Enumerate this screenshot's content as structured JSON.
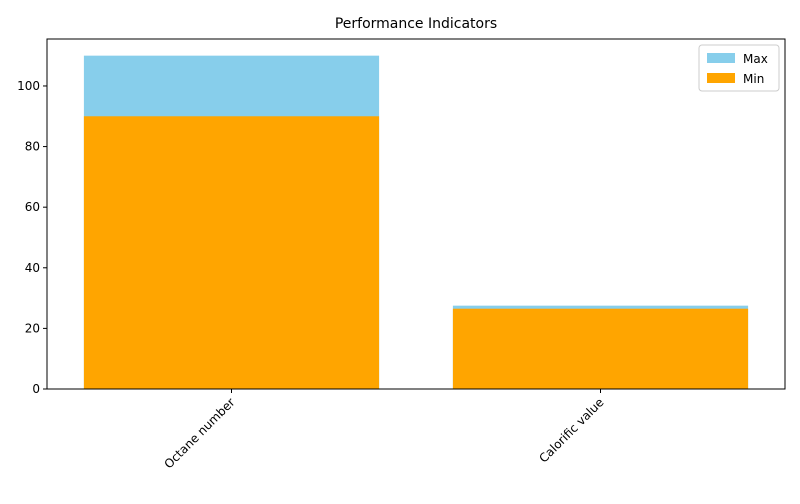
{
  "chart_data": {
    "type": "bar",
    "title": "Performance Indicators",
    "categories": [
      "Octane number",
      "Calorific value"
    ],
    "series": [
      {
        "name": "Max",
        "color": "#87ceeb",
        "values": [
          110,
          27.5
        ]
      },
      {
        "name": "Min",
        "color": "#ffa500",
        "values": [
          90,
          26.5
        ]
      }
    ],
    "ylim": [
      0,
      115.5
    ],
    "yticks": [
      0,
      20,
      40,
      60,
      80,
      100
    ],
    "legend": "upper right"
  }
}
